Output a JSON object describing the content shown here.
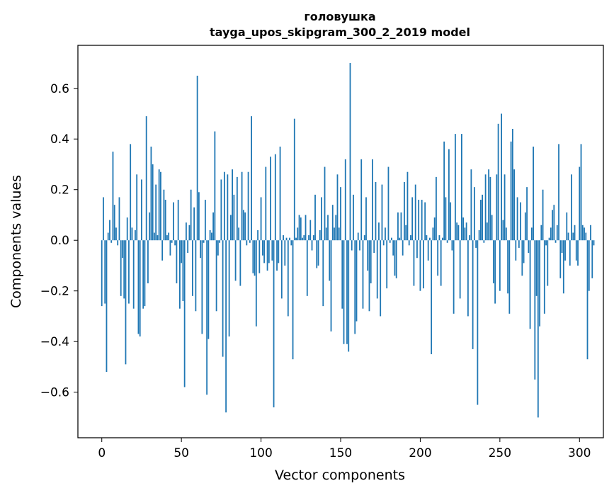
{
  "chart_data": {
    "type": "bar",
    "title": "головушка",
    "subtitle": "tayga_upos_skipgram_300_2_2019 model",
    "xlabel": "Vector components",
    "ylabel": "Components values",
    "xlim": [
      -15,
      315
    ],
    "ylim": [
      -0.78,
      0.77
    ],
    "x_ticks": [
      0,
      50,
      100,
      150,
      200,
      250,
      300
    ],
    "y_ticks": [
      -0.6,
      -0.4,
      -0.2,
      0.0,
      0.2,
      0.4,
      0.6
    ],
    "x_tick_labels": [
      "0",
      "50",
      "100",
      "150",
      "200",
      "250",
      "300"
    ],
    "y_tick_labels": [
      "−0.6",
      "−0.4",
      "−0.2",
      "0.0",
      "0.2",
      "0.4",
      "0.6"
    ],
    "bar_color": "#1f77b4",
    "grid": false,
    "values": [
      -0.26,
      0.17,
      -0.25,
      -0.52,
      0.03,
      0.08,
      -0.01,
      0.35,
      0.14,
      0.05,
      -0.02,
      0.17,
      -0.22,
      -0.07,
      -0.23,
      -0.49,
      0.09,
      -0.25,
      0.38,
      0.05,
      -0.27,
      0.04,
      0.26,
      -0.37,
      -0.38,
      0.24,
      -0.27,
      -0.26,
      0.49,
      -0.17,
      0.11,
      0.37,
      0.3,
      0.03,
      0.22,
      0.02,
      0.28,
      0.27,
      -0.08,
      0.2,
      0.16,
      0.02,
      0.03,
      -0.06,
      -0.01,
      0.15,
      -0.02,
      -0.17,
      0.16,
      -0.27,
      -0.09,
      -0.24,
      -0.58,
      0.07,
      -0.05,
      0.06,
      0.2,
      -0.22,
      0.13,
      -0.28,
      0.65,
      0.19,
      -0.07,
      -0.37,
      -0.01,
      0.16,
      -0.61,
      -0.39,
      0.04,
      0.03,
      0.11,
      0.43,
      -0.28,
      -0.06,
      -0.01,
      0.24,
      -0.46,
      0.27,
      -0.68,
      0.26,
      -0.38,
      0.1,
      0.28,
      0.18,
      -0.16,
      0.25,
      0.05,
      -0.18,
      0.27,
      0.12,
      0.11,
      -0.02,
      0.27,
      -0.01,
      0.49,
      -0.13,
      -0.14,
      -0.34,
      0.04,
      -0.13,
      0.17,
      -0.06,
      -0.09,
      0.29,
      -0.12,
      -0.09,
      0.33,
      -0.08,
      -0.66,
      0.34,
      -0.12,
      -0.09,
      0.37,
      -0.23,
      0.02,
      -0.1,
      0.01,
      -0.3,
      0.01,
      -0.02,
      -0.47,
      0.48,
      0.01,
      0.05,
      0.1,
      0.09,
      0.01,
      0.02,
      0.1,
      -0.22,
      0.02,
      0.08,
      -0.04,
      0.02,
      0.18,
      -0.11,
      -0.1,
      0.04,
      0.17,
      -0.26,
      0.29,
      0.05,
      0.1,
      -0.16,
      -0.36,
      0.14,
      0.05,
      0.1,
      0.26,
      0.05,
      0.21,
      -0.27,
      -0.41,
      0.32,
      -0.41,
      -0.44,
      0.7,
      -0.04,
      0.18,
      -0.37,
      -0.32,
      0.03,
      -0.04,
      0.32,
      -0.27,
      0.02,
      0.17,
      -0.12,
      -0.28,
      -0.17,
      0.32,
      -0.05,
      0.23,
      -0.23,
      0.07,
      -0.3,
      0.22,
      -0.02,
      0.05,
      -0.19,
      0.29,
      -0.01,
      0.01,
      -0.06,
      -0.14,
      -0.15,
      0.11,
      0.01,
      0.11,
      -0.06,
      0.23,
      0.06,
      0.27,
      -0.02,
      0.02,
      0.17,
      -0.18,
      0.22,
      -0.07,
      0.16,
      -0.2,
      0.16,
      -0.19,
      0.15,
      0.02,
      -0.08,
      0.01,
      -0.45,
      0.05,
      0.09,
      0.25,
      -0.14,
      0.02,
      -0.18,
      0.01,
      0.39,
      0.17,
      -0.01,
      0.36,
      0.15,
      -0.04,
      -0.29,
      0.42,
      0.07,
      0.06,
      -0.23,
      0.42,
      0.09,
      0.05,
      0.07,
      -0.3,
      0.02,
      0.28,
      -0.43,
      0.21,
      -0.03,
      -0.65,
      0.04,
      0.16,
      0.18,
      -0.01,
      0.26,
      0.07,
      0.28,
      0.25,
      0.1,
      -0.17,
      -0.25,
      0.26,
      0.46,
      -0.2,
      0.5,
      0.08,
      0.26,
      0.05,
      -0.21,
      -0.29,
      0.39,
      0.44,
      0.28,
      -0.08,
      0.17,
      -0.03,
      0.15,
      -0.14,
      -0.09,
      0.11,
      0.21,
      -0.05,
      -0.35,
      0.05,
      0.37,
      -0.55,
      -0.22,
      -0.7,
      -0.34,
      0.06,
      0.2,
      -0.29,
      -0.02,
      -0.18,
      0.01,
      0.05,
      0.12,
      0.14,
      -0.01,
      0.06,
      0.38,
      -0.15,
      -0.05,
      -0.21,
      -0.08,
      0.11,
      0.03,
      -0.1,
      0.26,
      0.03,
      0.06,
      -0.08,
      -0.1,
      0.29,
      0.38,
      0.06,
      0.05,
      0.03,
      -0.47,
      -0.2,
      0.06,
      -0.15,
      -0.02
    ]
  }
}
